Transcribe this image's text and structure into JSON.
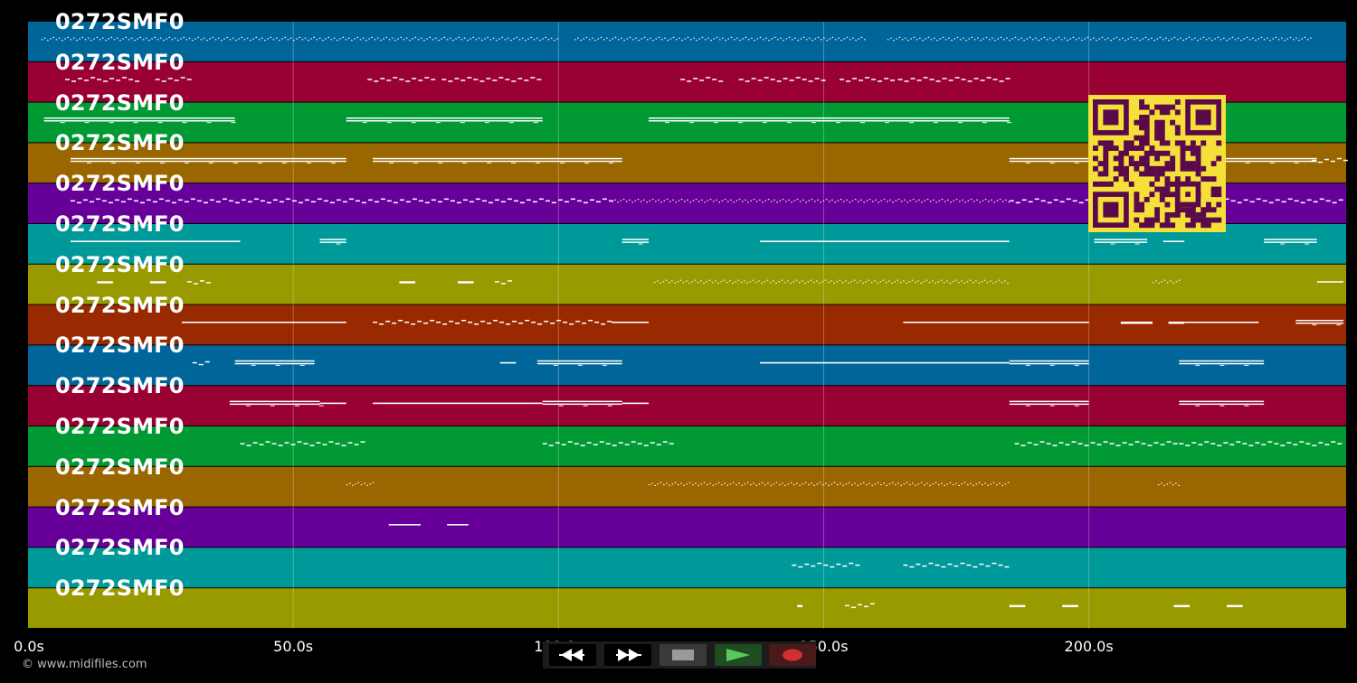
{
  "app": {
    "copyright": "© www.midifiles.com"
  },
  "timeline": {
    "ticks": [
      {
        "label": "0.0s",
        "seconds": 0
      },
      {
        "label": "50.0s",
        "seconds": 50
      },
      {
        "label": "100.0s",
        "seconds": 100
      },
      {
        "label": "150.0s",
        "seconds": 150
      },
      {
        "label": "200.0s",
        "seconds": 200
      }
    ],
    "max_seconds": 248.5
  },
  "lanes": [
    {
      "label": "0272SMF0",
      "color": "#006699"
    },
    {
      "label": "0272SMF0",
      "color": "#990033"
    },
    {
      "label": "0272SMF0",
      "color": "#009933"
    },
    {
      "label": "0272SMF0",
      "color": "#996600"
    },
    {
      "label": "0272SMF0",
      "color": "#660099"
    },
    {
      "label": "0272SMF0",
      "color": "#009999"
    },
    {
      "label": "0272SMF0",
      "color": "#999900"
    },
    {
      "label": "0272SMF0",
      "color": "#992900"
    },
    {
      "label": "0272SMF0",
      "color": "#006699"
    },
    {
      "label": "0272SMF0",
      "color": "#990033"
    },
    {
      "label": "0272SMF0",
      "color": "#009933"
    },
    {
      "label": "0272SMF0",
      "color": "#996600"
    },
    {
      "label": "0272SMF0",
      "color": "#660099"
    },
    {
      "label": "0272SMF0",
      "color": "#009999"
    },
    {
      "label": "0272SMF0",
      "color": "#999900"
    }
  ],
  "notes": [
    {
      "lane": 0,
      "segments": [
        [
          2.5,
          100,
          "dots"
        ],
        [
          103,
          158,
          "dots"
        ],
        [
          162,
          242,
          "dots"
        ]
      ]
    },
    {
      "lane": 1,
      "segments": [
        [
          7,
          21,
          "dash"
        ],
        [
          24,
          30,
          "dash"
        ],
        [
          64,
          77,
          "dash"
        ],
        [
          78,
          97,
          "dash"
        ],
        [
          123,
          131,
          "dash"
        ],
        [
          134,
          150,
          "dash"
        ],
        [
          153,
          163,
          "dash"
        ],
        [
          164,
          185,
          "dash"
        ]
      ]
    },
    {
      "lane": 2,
      "segments": [
        [
          3,
          39,
          "bars"
        ],
        [
          60,
          97,
          "bars"
        ],
        [
          117,
          185,
          "bars"
        ]
      ]
    },
    {
      "lane": 3,
      "segments": [
        [
          8,
          60,
          "bars"
        ],
        [
          65,
          112,
          "bars"
        ],
        [
          185,
          243,
          "bars"
        ],
        [
          242,
          248,
          "dash"
        ]
      ]
    },
    {
      "lane": 4,
      "segments": [
        [
          8,
          110,
          "dash"
        ],
        [
          110,
          185,
          "dots"
        ],
        [
          185,
          248,
          "dash"
        ]
      ]
    },
    {
      "lane": 5,
      "segments": [
        [
          8,
          40,
          "line"
        ],
        [
          55,
          60,
          "bars"
        ],
        [
          112,
          117,
          "bars"
        ],
        [
          138,
          185,
          "line"
        ],
        [
          201,
          211,
          "bars"
        ],
        [
          214,
          218,
          "line"
        ],
        [
          233,
          243,
          "bars"
        ]
      ]
    },
    {
      "lane": 6,
      "segments": [
        [
          13,
          16,
          "bar"
        ],
        [
          23,
          26,
          "bar"
        ],
        [
          30,
          34,
          "dash"
        ],
        [
          70,
          73,
          "bar"
        ],
        [
          81,
          84,
          "bar"
        ],
        [
          88,
          91,
          "dash"
        ],
        [
          118,
          185,
          "dots"
        ],
        [
          212,
          217,
          "dots"
        ],
        [
          243,
          248,
          "line"
        ]
      ]
    },
    {
      "lane": 7,
      "segments": [
        [
          29,
          60,
          "line"
        ],
        [
          65,
          110,
          "dash"
        ],
        [
          110,
          117,
          "line"
        ],
        [
          165,
          200,
          "line"
        ],
        [
          206,
          212,
          "bar"
        ],
        [
          215,
          218,
          "bar"
        ],
        [
          218,
          232,
          "line"
        ],
        [
          239,
          248,
          "bars"
        ]
      ]
    },
    {
      "lane": 8,
      "segments": [
        [
          31,
          34,
          "dash"
        ],
        [
          39,
          54,
          "bars"
        ],
        [
          89,
          92,
          "line"
        ],
        [
          96,
          112,
          "bars"
        ],
        [
          138,
          185,
          "line"
        ],
        [
          185,
          200,
          "bars"
        ],
        [
          217,
          233,
          "bars"
        ]
      ]
    },
    {
      "lane": 9,
      "segments": [
        [
          38,
          55,
          "bars"
        ],
        [
          55,
          60,
          "line"
        ],
        [
          65,
          97,
          "line"
        ],
        [
          97,
          112,
          "bars"
        ],
        [
          112,
          117,
          "line"
        ],
        [
          185,
          200,
          "bars"
        ],
        [
          217,
          233,
          "bars"
        ]
      ]
    },
    {
      "lane": 10,
      "segments": [
        [
          40,
          63,
          "dash"
        ],
        [
          97,
          121,
          "dash"
        ],
        [
          186,
          217,
          "dash"
        ],
        [
          217,
          248,
          "dash"
        ]
      ]
    },
    {
      "lane": 11,
      "segments": [
        [
          60,
          65,
          "dots"
        ],
        [
          117,
          185,
          "dots"
        ],
        [
          213,
          217,
          "dots"
        ]
      ]
    },
    {
      "lane": 12,
      "segments": [
        [
          68,
          74,
          "line"
        ],
        [
          79,
          83,
          "line"
        ]
      ]
    },
    {
      "lane": 13,
      "segments": [
        [
          144,
          156,
          "dash"
        ],
        [
          165,
          185,
          "dash"
        ]
      ]
    },
    {
      "lane": 14,
      "segments": [
        [
          145,
          146,
          "bar"
        ],
        [
          154,
          159,
          "dash"
        ],
        [
          185,
          188,
          "bar"
        ],
        [
          195,
          198,
          "bar"
        ],
        [
          216,
          219,
          "bar"
        ],
        [
          226,
          229,
          "bar"
        ]
      ]
    }
  ],
  "qr_code": {
    "icon": "qr-code-icon",
    "colors": {
      "light": "#f5e03a",
      "dark": "#5a0a4a"
    }
  },
  "transport": {
    "buttons": [
      {
        "name": "rewind-button",
        "icon": "rewind-icon"
      },
      {
        "name": "fast-forward-button",
        "icon": "fast-forward-icon"
      },
      {
        "name": "stop-button",
        "icon": "stop-icon"
      },
      {
        "name": "play-button",
        "icon": "play-icon"
      },
      {
        "name": "record-button",
        "icon": "record-icon"
      }
    ]
  }
}
